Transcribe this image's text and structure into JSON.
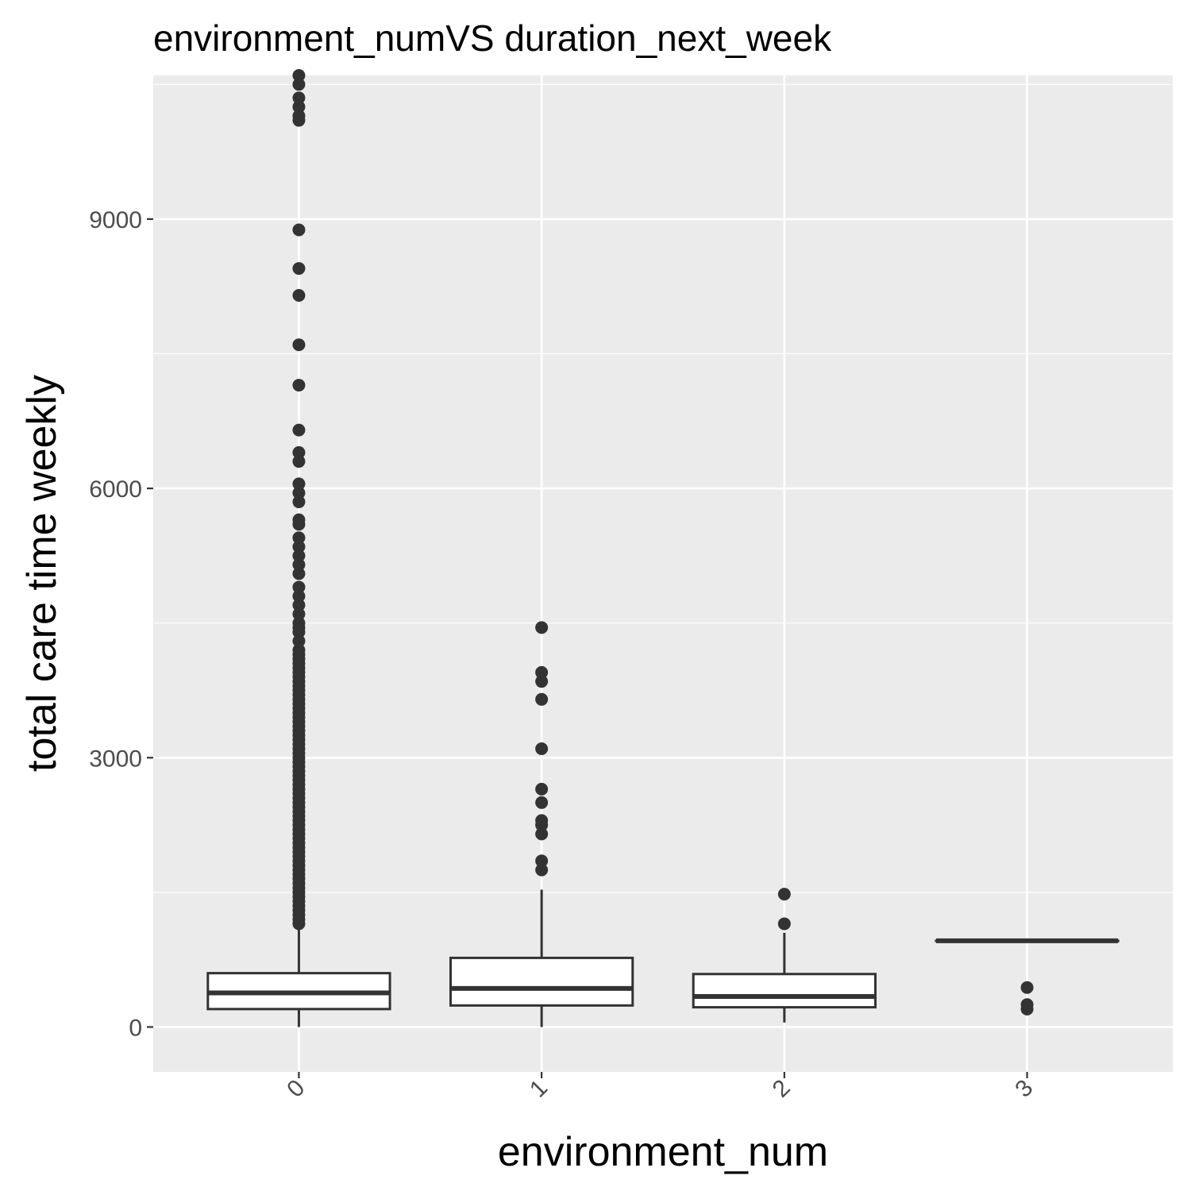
{
  "chart_data": {
    "type": "boxplot",
    "title": "environment_numVS duration_next_week",
    "xlabel": "environment_num",
    "ylabel": "total care time weekly",
    "categories": [
      "0",
      "1",
      "2",
      "3"
    ],
    "ylim": [
      -500,
      10600
    ],
    "yticks": [
      0,
      3000,
      6000,
      9000
    ],
    "grid": true,
    "colors": {
      "panel_background": "#ebebeb",
      "grid_line": "#ffffff",
      "box_fill": "#ffffff",
      "box_stroke": "#333333",
      "outlier": "#333333",
      "tick_text": "#4d4d4d"
    },
    "boxes": [
      {
        "category": "0",
        "lower_whisker": 0,
        "q1": 200,
        "median": 380,
        "q3": 600,
        "upper_whisker": 1130,
        "outliers": [
          1150,
          1200,
          1250,
          1300,
          1350,
          1400,
          1450,
          1500,
          1550,
          1600,
          1650,
          1700,
          1750,
          1800,
          1850,
          1900,
          1950,
          2000,
          2050,
          2100,
          2150,
          2200,
          2250,
          2300,
          2350,
          2400,
          2450,
          2500,
          2550,
          2600,
          2650,
          2700,
          2750,
          2800,
          2850,
          2900,
          2950,
          3000,
          3050,
          3100,
          3150,
          3200,
          3250,
          3300,
          3350,
          3400,
          3450,
          3500,
          3550,
          3600,
          3650,
          3700,
          3750,
          3800,
          3850,
          3900,
          3950,
          4000,
          4050,
          4100,
          4150,
          4200,
          4300,
          4400,
          4450,
          4500,
          4600,
          4700,
          4800,
          4900,
          5050,
          5150,
          5250,
          5350,
          5450,
          5600,
          5650,
          5850,
          5950,
          6050,
          6300,
          6400,
          6650,
          7150,
          7600,
          8150,
          8450,
          8880,
          10100,
          10150,
          10250,
          10350,
          10500,
          10600
        ]
      },
      {
        "category": "1",
        "lower_whisker": 0,
        "q1": 240,
        "median": 430,
        "q3": 770,
        "upper_whisker": 1530,
        "outliers": [
          1750,
          1850,
          2150,
          2250,
          2300,
          2500,
          2650,
          3100,
          3650,
          3850,
          3950,
          4450
        ]
      },
      {
        "category": "2",
        "lower_whisker": 50,
        "q1": 220,
        "median": 340,
        "q3": 590,
        "upper_whisker": 1050,
        "outliers": [
          1150,
          1480
        ]
      },
      {
        "category": "3",
        "lower_whisker": 960,
        "q1": 960,
        "median": 960,
        "q3": 960,
        "upper_whisker": 960,
        "outliers": [
          200,
          250,
          440
        ]
      }
    ]
  }
}
